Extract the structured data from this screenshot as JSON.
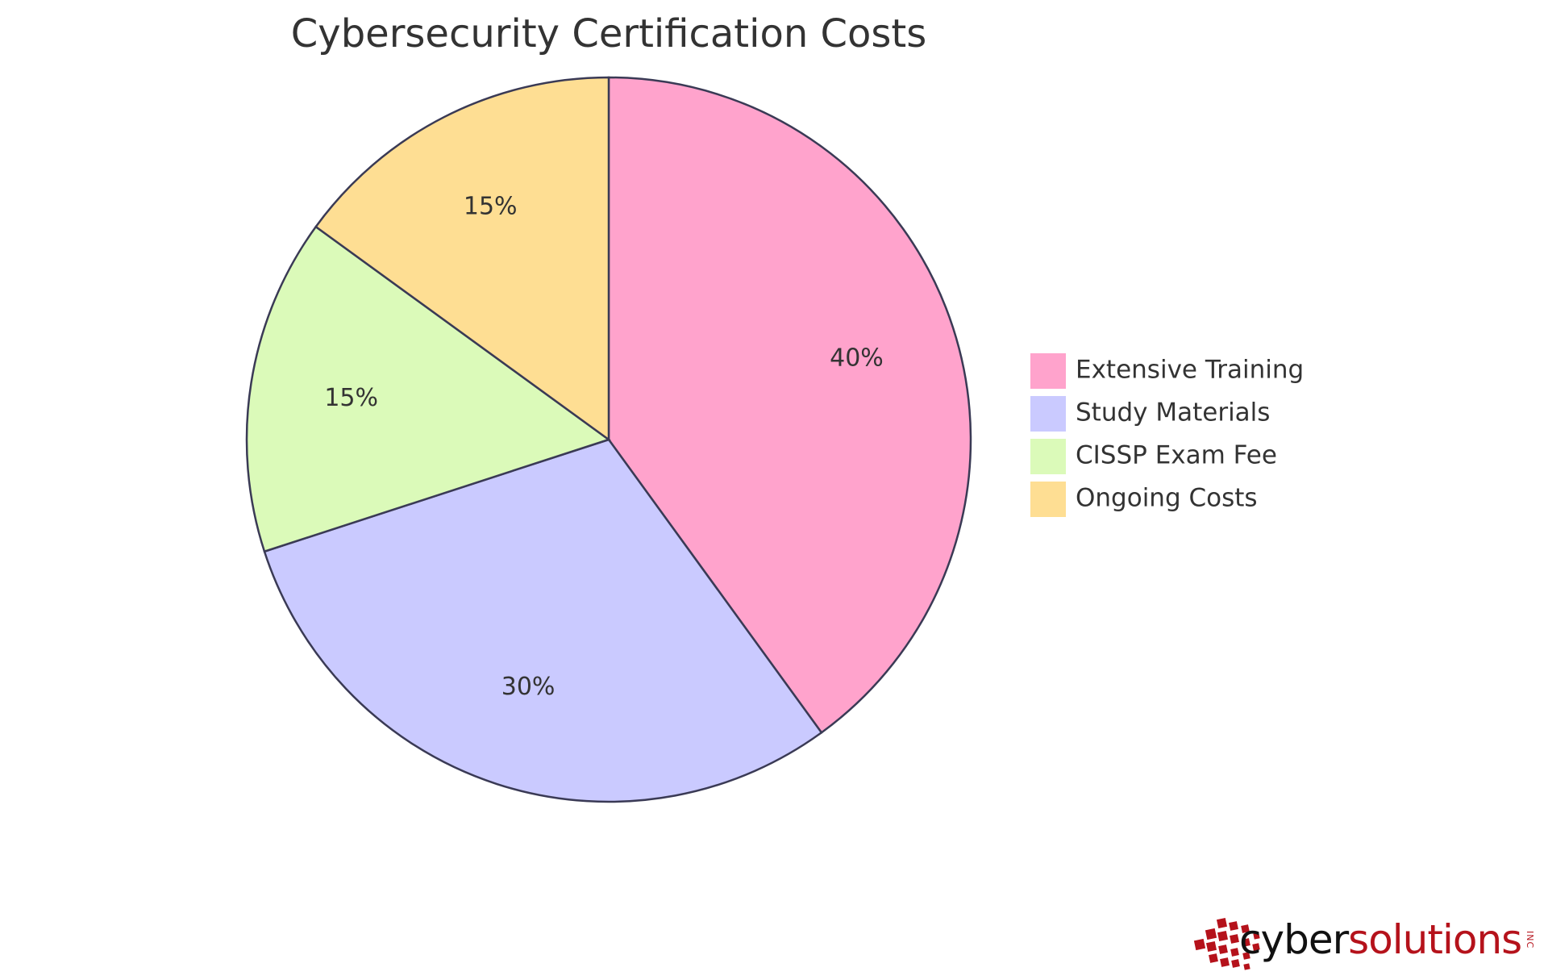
{
  "chart_data": {
    "type": "pie",
    "title": "Cybersecurity Certification Costs",
    "slices": [
      {
        "label": "Extensive Training",
        "value": 40,
        "display": "40%",
        "color": "#FFA3CC"
      },
      {
        "label": "Study Materials",
        "value": 30,
        "display": "30%",
        "color": "#CACAFF"
      },
      {
        "label": "CISSP Exam Fee",
        "value": 15,
        "display": "15%",
        "color": "#DBFAB9"
      },
      {
        "label": "Ongoing Costs",
        "value": 15,
        "display": "15%",
        "color": "#FEDE93"
      }
    ],
    "legend_position": "right"
  },
  "logo": {
    "cyber": "cyber",
    "solutions": "solutions",
    "inc": "INC",
    "mark_color": "#b5121b"
  }
}
